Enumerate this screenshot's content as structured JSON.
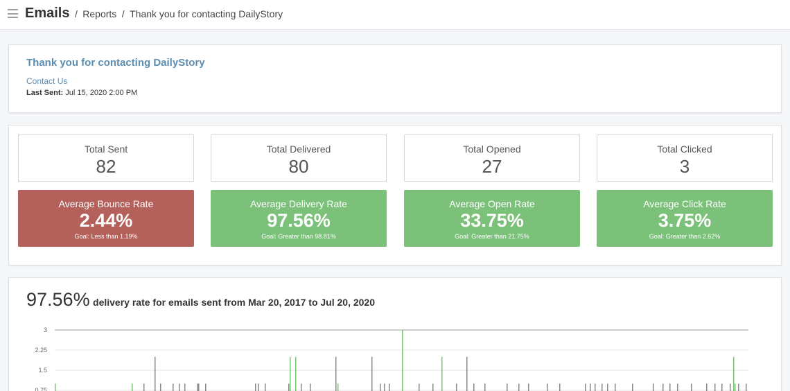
{
  "header": {
    "app_title": "Emails",
    "breadcrumb": [
      "Reports",
      "Thank you for contacting DailyStory"
    ],
    "separator": "/"
  },
  "email": {
    "title": "Thank you for contacting DailyStory",
    "list_name": "Contact Us",
    "last_sent_label": "Last Sent:",
    "last_sent_value": "Jul 15, 2020 2:00 PM"
  },
  "totals": [
    {
      "label": "Total Sent",
      "value": "82"
    },
    {
      "label": "Total Delivered",
      "value": "80"
    },
    {
      "label": "Total Opened",
      "value": "27"
    },
    {
      "label": "Total Clicked",
      "value": "3"
    }
  ],
  "rates": [
    {
      "label": "Average Bounce Rate",
      "value": "2.44%",
      "goal": "Goal: Less than 1.19%",
      "status": "bad"
    },
    {
      "label": "Average Delivery Rate",
      "value": "97.56%",
      "goal": "Goal: Greater than 98.81%",
      "status": "good"
    },
    {
      "label": "Average Open Rate",
      "value": "33.75%",
      "goal": "Goal: Greater than 21.75%",
      "status": "good"
    },
    {
      "label": "Average Click Rate",
      "value": "3.75%",
      "goal": "Goal: Greater than 2.62%",
      "status": "good"
    }
  ],
  "colors": {
    "bad": "#b4615c",
    "good": "#7bc17a",
    "link": "#5b8db1"
  },
  "delivery_chart": {
    "headline_value": "97.56%",
    "headline_text": "delivery rate for emails sent from Mar 20, 2017 to Jul 20, 2020"
  },
  "chart_data": {
    "type": "bar",
    "title": "",
    "xlabel": "",
    "ylabel": "",
    "ylim": [
      0,
      3
    ],
    "yticks": [
      3,
      2.25,
      1.5,
      0.75
    ],
    "grid": true,
    "series": [
      {
        "color": "#7bc17a",
        "x": [
          79,
          190,
          418,
          426,
          487,
          580,
          637,
          1058,
          1060
        ],
        "values": [
          1,
          1,
          2,
          2,
          1,
          3,
          2,
          2,
          1
        ]
      },
      {
        "color": "#888888",
        "x": [
          207,
          223,
          231,
          249,
          258,
          266,
          284,
          286,
          296,
          368,
          372,
          382,
          416,
          434,
          447,
          484,
          536,
          548,
          554,
          561,
          604,
          624,
          658,
          673,
          683,
          699,
          731,
          748,
          762,
          789,
          807,
          844,
          851,
          858,
          868,
          876,
          887,
          912,
          942,
          956,
          966,
          977,
          997,
          1019,
          1031,
          1041,
          1053,
          1065,
          1076
        ],
        "values": [
          1,
          2,
          1,
          1,
          1,
          1,
          1,
          1,
          1,
          1,
          1,
          1,
          1,
          1,
          1,
          2,
          2,
          1,
          1,
          1,
          1,
          1,
          1,
          2,
          1,
          1,
          1,
          1,
          1,
          1,
          1,
          1,
          1,
          1,
          1,
          1,
          1,
          1,
          1,
          1,
          1,
          1,
          1,
          1,
          1,
          1,
          1,
          1,
          1
        ]
      }
    ]
  }
}
